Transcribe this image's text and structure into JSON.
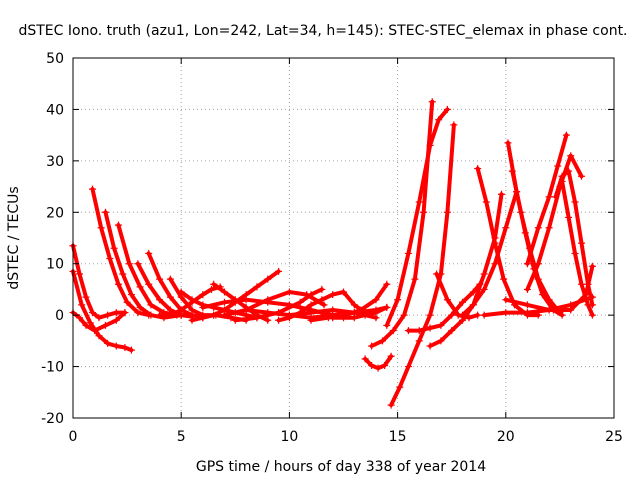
{
  "chart_data": {
    "type": "scatter",
    "title": "dSTEC Iono. truth (azu1, Lon=242, Lat=34, h=145): STEC-STEC_elemax in phase cont.",
    "xlabel": "GPS time / hours of day 338 of year 2014",
    "ylabel": "dSTEC  / TECUs",
    "xlim": [
      0,
      25
    ],
    "ylim": [
      -20,
      50
    ],
    "x_ticks": [
      0,
      5,
      10,
      15,
      20,
      25
    ],
    "y_ticks": [
      -20,
      -10,
      0,
      10,
      20,
      30,
      40,
      50
    ],
    "grid": true,
    "legend": "none",
    "marker": "plus",
    "color": "#ff0000",
    "series": [
      {
        "x": [
          0.0,
          0.3,
          0.6,
          0.9,
          1.2,
          1.6,
          2.0,
          2.4
        ],
        "y": [
          13.5,
          8,
          3.5,
          0.5,
          -0.5,
          0,
          0.5,
          0.5
        ]
      },
      {
        "x": [
          0.0,
          0.4,
          0.8,
          1.2,
          1.6,
          2.0,
          2.4,
          2.7
        ],
        "y": [
          8.5,
          2,
          -1.5,
          -4,
          -5.5,
          -6,
          -6.3,
          -6.8
        ]
      },
      {
        "x": [
          0.0,
          0.3,
          0.6,
          1.0,
          1.5,
          2.0,
          2.4
        ],
        "y": [
          0.5,
          -0.5,
          -2,
          -3,
          -2,
          -1,
          0.5
        ]
      },
      {
        "x": [
          0.9,
          1.3,
          1.7,
          2.1,
          2.5,
          3.0,
          3.5
        ],
        "y": [
          24.5,
          17,
          11,
          6,
          2.5,
          0.5,
          0
        ]
      },
      {
        "x": [
          1.5,
          1.9,
          2.3,
          2.7,
          3.1,
          3.6,
          4.2,
          5.0
        ],
        "y": [
          20,
          13,
          8,
          4,
          1.5,
          0,
          -0.5,
          0
        ]
      },
      {
        "x": [
          2.1,
          2.6,
          3.1,
          3.6,
          4.2,
          4.8,
          5.5
        ],
        "y": [
          17.5,
          10,
          5.5,
          2,
          0.5,
          0,
          0
        ]
      },
      {
        "x": [
          3.5,
          4.0,
          4.5,
          5.0,
          5.5,
          6.0,
          6.5
        ],
        "y": [
          12,
          7,
          3.5,
          1,
          0,
          -0.5,
          0
        ]
      },
      {
        "x": [
          3.0,
          3.5,
          4.0,
          4.5,
          5.0,
          5.5
        ],
        "y": [
          10,
          6,
          3,
          1,
          0,
          -0.3
        ]
      },
      {
        "x": [
          4.5,
          5.0,
          5.5,
          6.0,
          6.6,
          7.3,
          8.0
        ],
        "y": [
          7,
          3.5,
          1,
          0,
          0,
          -0.5,
          -1
        ]
      },
      {
        "x": [
          5.0,
          5.5,
          6.0,
          6.5,
          7.0,
          7.5,
          8.0,
          8.5
        ],
        "y": [
          4.5,
          3,
          2,
          1.5,
          1,
          0.5,
          0,
          -0.5
        ]
      },
      {
        "x": [
          4.0,
          4.5,
          5.0,
          5.5,
          6.0,
          6.4,
          6.8
        ],
        "y": [
          0,
          0,
          1,
          2.5,
          4,
          5,
          5.5
        ]
      },
      {
        "x": [
          5.5,
          6.0,
          6.5,
          7.0,
          7.5,
          8.0,
          8.5,
          9.0,
          9.5
        ],
        "y": [
          -1,
          -0.5,
          0,
          1,
          2.5,
          4,
          5.5,
          7,
          8.5
        ]
      },
      {
        "x": [
          6.0,
          7.0,
          8.0,
          9.0,
          10.0,
          11.0,
          12.0
        ],
        "y": [
          1.5,
          2.5,
          3,
          2.5,
          2,
          1,
          0
        ]
      },
      {
        "x": [
          7.0,
          8.0,
          9.0,
          10.0,
          10.8,
          11.6
        ],
        "y": [
          0,
          1,
          3,
          4.5,
          4,
          2
        ]
      },
      {
        "x": [
          6.5,
          7.0,
          7.5,
          8.0,
          8.5,
          9.0
        ],
        "y": [
          6,
          4.5,
          3,
          1.5,
          0,
          -1
        ]
      },
      {
        "x": [
          7.5,
          8.5,
          9.5,
          10.5,
          11.0,
          11.5
        ],
        "y": [
          -1,
          -0.5,
          0.5,
          2.5,
          4,
          5
        ]
      },
      {
        "x": [
          8.0,
          9.0,
          10.0,
          11.0,
          12.0,
          13.0,
          14.0
        ],
        "y": [
          1,
          0.5,
          0,
          0.5,
          1,
          0.5,
          -0.5
        ]
      },
      {
        "x": [
          9.5,
          10.0,
          10.5,
          11.0,
          11.5,
          12.0,
          12.5,
          13.0,
          13.5
        ],
        "y": [
          -1,
          -0.5,
          0.5,
          2,
          3,
          4,
          4.5,
          2,
          0.5
        ]
      },
      {
        "x": [
          10.0,
          11.0,
          12.0,
          13.0,
          14.0,
          14.5
        ],
        "y": [
          0,
          -0.5,
          0,
          0.5,
          1,
          1.5
        ]
      },
      {
        "x": [
          11.0,
          11.8,
          12.6,
          13.3,
          14.0,
          14.5
        ],
        "y": [
          -1,
          -0.5,
          0,
          1,
          3,
          6
        ]
      },
      {
        "x": [
          12.0,
          12.5,
          13.0,
          13.5,
          14.0,
          14.5
        ],
        "y": [
          -0.5,
          -0.5,
          -0.5,
          0,
          0.5,
          1.5
        ]
      },
      {
        "x": [
          13.5,
          13.8,
          14.1,
          14.4,
          14.7
        ],
        "y": [
          -8.5,
          -9.8,
          -10.3,
          -9.8,
          -8
        ]
      },
      {
        "x": [
          13.8,
          14.3,
          14.8,
          15.3,
          15.8,
          16.2,
          16.6
        ],
        "y": [
          -6,
          -5,
          -3,
          0,
          7,
          20,
          41.5
        ]
      },
      {
        "x": [
          14.7,
          15.1,
          15.5,
          16.0,
          16.5,
          17.0,
          17.3,
          17.6
        ],
        "y": [
          -17.5,
          -14,
          -10,
          -5,
          0,
          8,
          20,
          37
        ]
      },
      {
        "x": [
          14.5,
          15.0,
          15.5,
          16.0,
          16.5,
          16.9,
          17.3
        ],
        "y": [
          -2,
          3,
          12,
          22,
          33,
          38,
          40
        ]
      },
      {
        "x": [
          15.5,
          16.0,
          16.5,
          17.0,
          17.5,
          18.0,
          18.5,
          18.8
        ],
        "y": [
          -3,
          -3,
          -2.5,
          -2,
          0,
          2.5,
          4.5,
          6
        ]
      },
      {
        "x": [
          16.5,
          17.0,
          17.5,
          18.0,
          18.5,
          19.0,
          19.5,
          19.8
        ],
        "y": [
          -6,
          -5,
          -3,
          -1,
          2,
          8,
          15,
          23.5
        ]
      },
      {
        "x": [
          18.7,
          19.1,
          19.5,
          19.9,
          20.4,
          21.0,
          21.5
        ],
        "y": [
          28.5,
          22,
          14,
          7,
          2,
          0,
          0
        ]
      },
      {
        "x": [
          16.8,
          17.3,
          17.8,
          18.3,
          18.7
        ],
        "y": [
          8,
          3,
          0,
          -0.5,
          0
        ]
      },
      {
        "x": [
          18.0,
          18.5,
          19.0,
          19.5,
          20.0,
          20.5
        ],
        "y": [
          0,
          2,
          5,
          10,
          17,
          24
        ]
      },
      {
        "x": [
          20.1,
          20.5,
          20.9,
          21.3,
          21.7,
          22.2,
          22.6
        ],
        "y": [
          33.5,
          24,
          16,
          9,
          4,
          1,
          0
        ]
      },
      {
        "x": [
          20.3,
          20.7,
          21.1,
          21.5,
          22.0,
          22.5
        ],
        "y": [
          28,
          20,
          13,
          7,
          3,
          0.5
        ]
      },
      {
        "x": [
          21.0,
          21.5,
          22.0,
          22.4,
          22.8
        ],
        "y": [
          10,
          17,
          23,
          29,
          35
        ]
      },
      {
        "x": [
          22.3,
          22.6,
          22.9,
          23.2,
          23.5,
          23.8,
          24.0
        ],
        "y": [
          23,
          27,
          28,
          22,
          14,
          6,
          2
        ]
      },
      {
        "x": [
          21.0,
          21.5,
          22.0,
          22.5,
          23.0,
          23.5
        ],
        "y": [
          5,
          10,
          17,
          25,
          31,
          27
        ]
      },
      {
        "x": [
          22.6,
          22.9,
          23.2,
          23.5,
          23.8,
          24.0
        ],
        "y": [
          26,
          19,
          12,
          6,
          2,
          0
        ]
      },
      {
        "x": [
          19.0,
          20.0,
          21.0,
          22.0,
          23.0,
          24.0
        ],
        "y": [
          0,
          0.5,
          0.5,
          1,
          2,
          3.5
        ]
      },
      {
        "x": [
          20.0,
          21.0,
          22.0,
          23.0,
          23.7,
          24.0
        ],
        "y": [
          3,
          2,
          1,
          1,
          4,
          9.5
        ]
      }
    ]
  }
}
